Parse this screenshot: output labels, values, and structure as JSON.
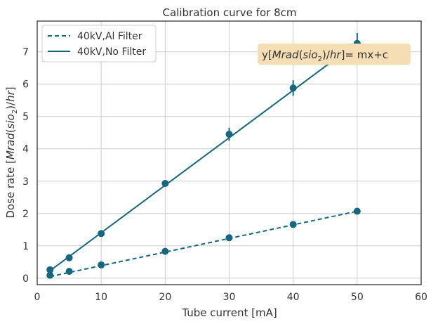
{
  "chart_data": {
    "type": "line",
    "title": "Calibration curve for 8cm",
    "xlabel": "Tube current [mA]",
    "ylabel_parts": {
      "prefix": "Dose rate [",
      "var1": "Mrad",
      "open": "(",
      "var2": "sio",
      "sub": "2",
      "close": ")/",
      "var3": "hr",
      "suffix": "]"
    },
    "xlim": [
      0,
      60
    ],
    "ylim": [
      -0.2,
      7.95
    ],
    "xticks": [
      "0",
      "10",
      "20",
      "30",
      "40",
      "50",
      "60"
    ],
    "yticks": [
      "0",
      "1",
      "2",
      "3",
      "4",
      "5",
      "6",
      "7"
    ],
    "grid": true,
    "legend_position": "top-left",
    "color": "#14677e",
    "series": [
      {
        "name": "40kV,Al Filter",
        "style": "dashed",
        "points": {
          "x": [
            2,
            5,
            10,
            20,
            30,
            40,
            50
          ],
          "y": [
            0.09,
            0.21,
            0.41,
            0.83,
            1.25,
            1.66,
            2.07
          ]
        },
        "fit": {
          "x": [
            2,
            50
          ],
          "y": [
            0.05,
            2.07
          ]
        }
      },
      {
        "name": "40kV,No Filter",
        "style": "solid",
        "points": {
          "x": [
            2,
            5,
            10,
            20,
            30,
            40,
            50
          ],
          "y": [
            0.26,
            0.63,
            1.38,
            2.93,
            4.45,
            5.88,
            7.26
          ],
          "err": [
            0.05,
            0.06,
            0.08,
            0.1,
            0.2,
            0.24,
            0.32
          ]
        },
        "fit": {
          "x": [
            2,
            50
          ],
          "y": [
            0.23,
            7.28
          ]
        }
      }
    ],
    "annotation_parts": {
      "prefix": "y[",
      "var1": "Mrad",
      "open": "(",
      "var2": "sio",
      "sub": "2",
      "close": ")/",
      "var3": "hr",
      "suffix": "]= mx+c"
    },
    "annotation_bg": "#f5deb3"
  }
}
